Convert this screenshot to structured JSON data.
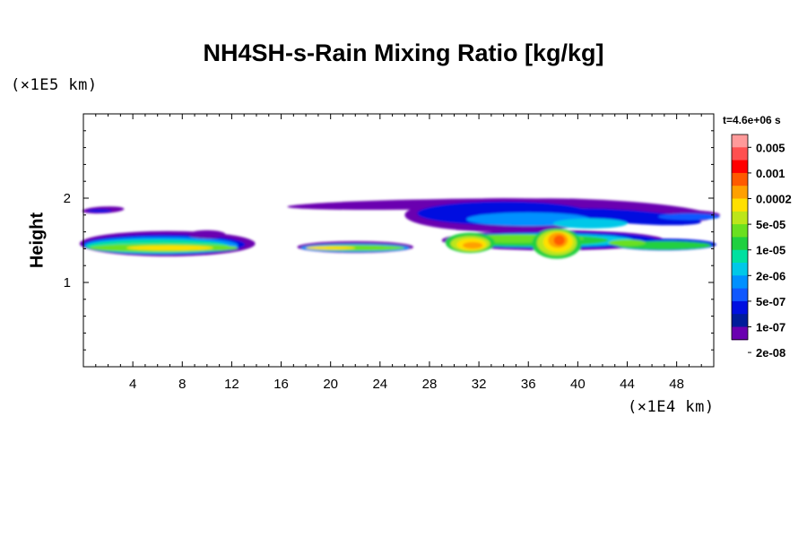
{
  "chart_data": {
    "type": "heatmap",
    "title": "NH4SH-s-Rain Mixing Ratio [kg/kg]",
    "ylabel": "Height",
    "yunit": "(×1E5 km)",
    "xunit": "(×1E4 km)",
    "timestamp": "t=4.6e+06 s",
    "xlim": [
      0,
      51
    ],
    "ylim": [
      0,
      3
    ],
    "xticks": [
      4,
      8,
      12,
      16,
      20,
      24,
      28,
      32,
      36,
      40,
      44,
      48
    ],
    "yticks": [
      1,
      2
    ],
    "colorbar": {
      "labels": [
        "0.005",
        "0.001",
        "0.0002",
        "5e-05",
        "1e-05",
        "2e-06",
        "5e-07",
        "1e-07",
        "2e-08"
      ],
      "colors": [
        "#ff9a9a",
        "#ff5050",
        "#ff0000",
        "#ff5a00",
        "#ffa000",
        "#ffe000",
        "#bce61a",
        "#6ae020",
        "#20d040",
        "#00e0a0",
        "#00c8e8",
        "#0090ff",
        "#1058ff",
        "#0010e0",
        "#001c9a",
        "#6a00b0"
      ]
    },
    "features": [
      {
        "name": "high-layer-west",
        "x": [
          0,
          4
        ],
        "y": [
          1.8,
          1.9
        ],
        "level": "2e-08"
      },
      {
        "name": "low-layer-west",
        "x": [
          0,
          13.5
        ],
        "y": [
          1.33,
          1.62
        ],
        "level": "1e-05"
      },
      {
        "name": "low-layer-central",
        "x": [
          17,
          26
        ],
        "y": [
          1.35,
          1.5
        ],
        "level": "5e-05"
      },
      {
        "name": "upper-band-east",
        "x": [
          18,
          51
        ],
        "y": [
          1.55,
          2.02
        ],
        "level": "2e-06"
      },
      {
        "name": "core-32",
        "x": [
          30,
          33
        ],
        "y": [
          1.35,
          1.6
        ],
        "level": "0.0002"
      },
      {
        "name": "core-38",
        "x": [
          37,
          39.5
        ],
        "y": [
          1.3,
          1.65
        ],
        "level": "0.001"
      },
      {
        "name": "low-layer-east",
        "x": [
          40,
          51
        ],
        "y": [
          1.35,
          1.55
        ],
        "level": "1e-05"
      }
    ]
  }
}
